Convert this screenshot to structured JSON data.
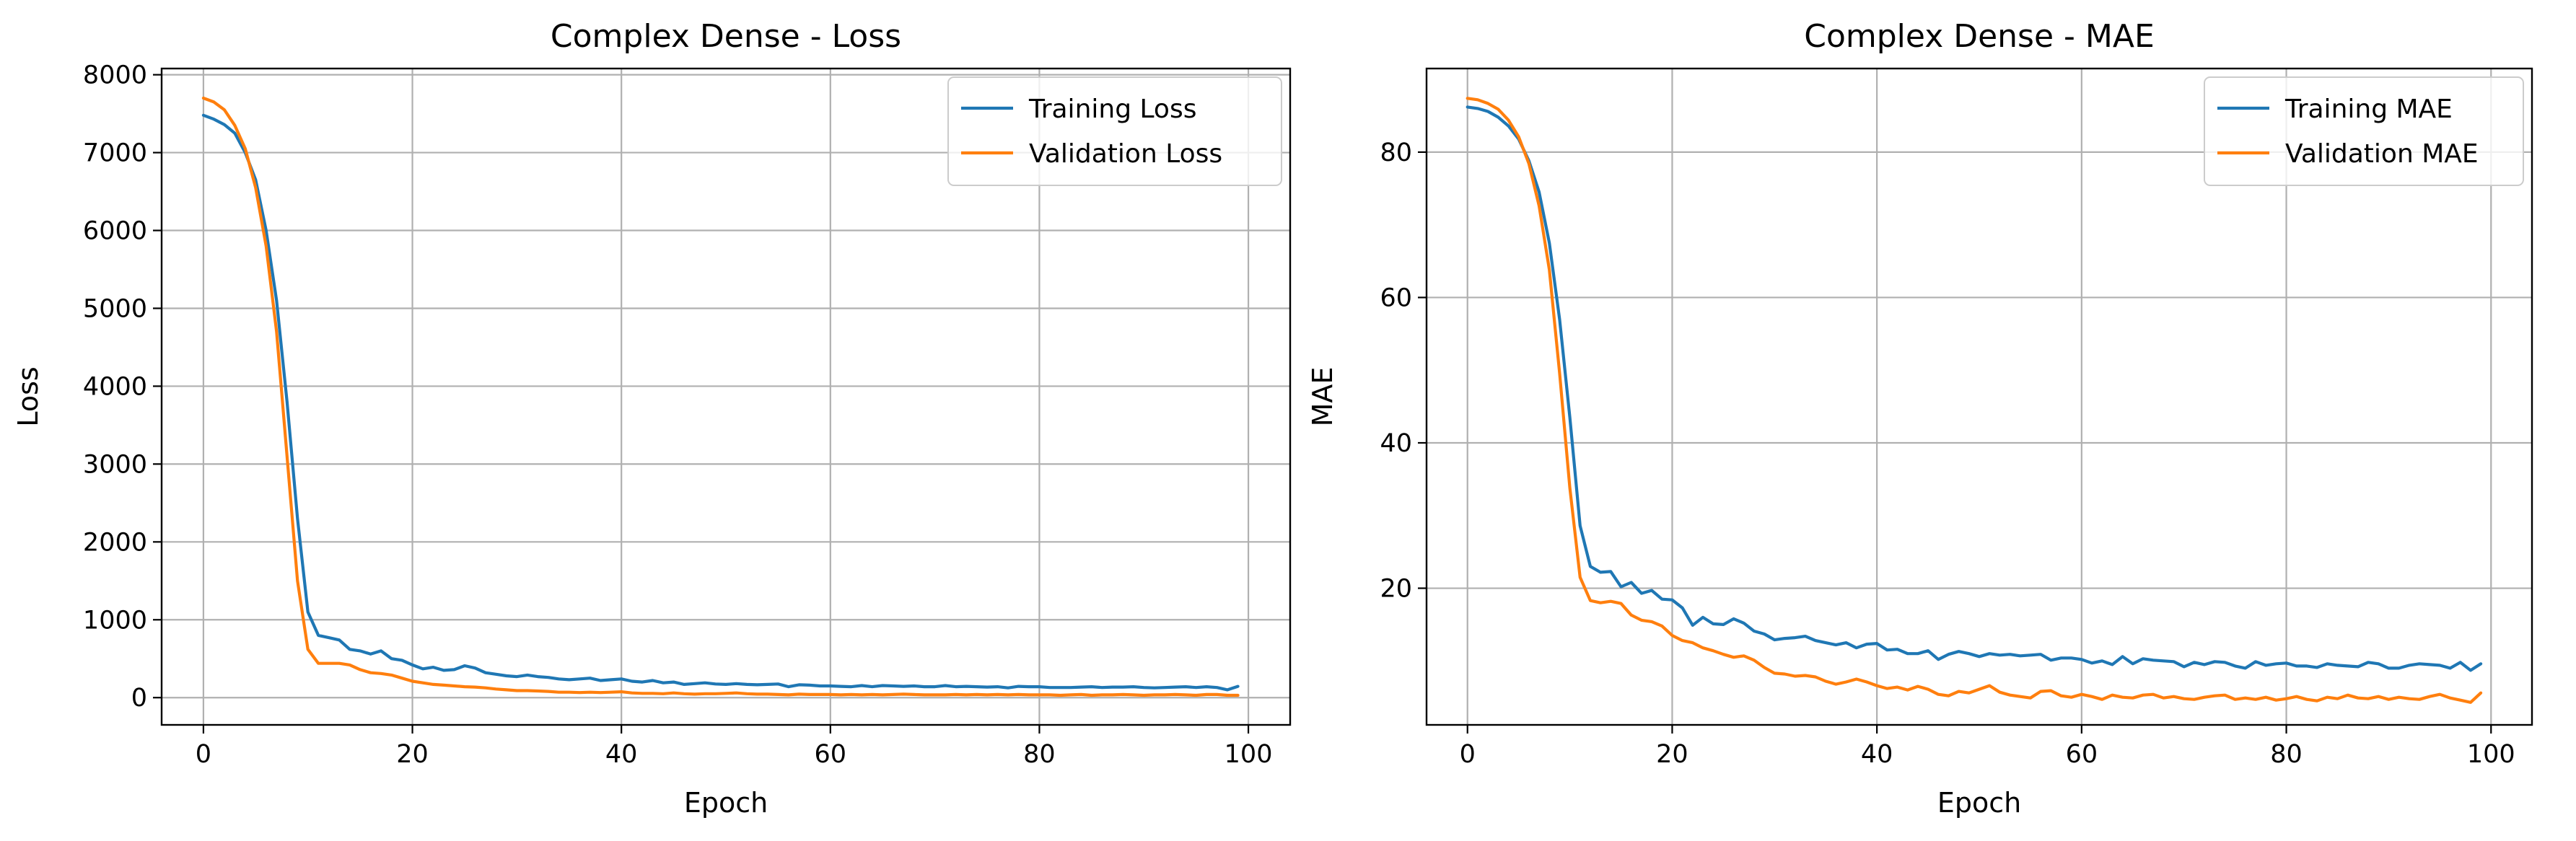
{
  "chart_data": [
    {
      "type": "line",
      "title": "Complex Dense - Loss",
      "xlabel": "Epoch",
      "ylabel": "Loss",
      "xlim": [
        -4,
        104
      ],
      "ylim": [
        -350,
        8080
      ],
      "xticks": [
        0,
        20,
        40,
        60,
        80,
        100
      ],
      "yticks": [
        0,
        1000,
        2000,
        3000,
        4000,
        5000,
        6000,
        7000,
        8000
      ],
      "grid": true,
      "legend_position": "top-right",
      "series": [
        {
          "name": "Training Loss",
          "color": "#1f77b4",
          "x": [
            0,
            1,
            2,
            3,
            4,
            5,
            6,
            7,
            8,
            9,
            10,
            11,
            12,
            13,
            14,
            15,
            16,
            17,
            18,
            19,
            20,
            21,
            22,
            23,
            24,
            25,
            26,
            27,
            28,
            29,
            30,
            31,
            32,
            33,
            34,
            35,
            36,
            37,
            38,
            39,
            40,
            41,
            42,
            43,
            44,
            45,
            46,
            47,
            48,
            49,
            50,
            51,
            52,
            53,
            54,
            55,
            56,
            57,
            58,
            59,
            60,
            61,
            62,
            63,
            64,
            65,
            66,
            67,
            68,
            69,
            70,
            71,
            72,
            73,
            74,
            75,
            76,
            77,
            78,
            79,
            80,
            81,
            82,
            83,
            84,
            85,
            86,
            87,
            88,
            89,
            90,
            91,
            92,
            93,
            94,
            95,
            96,
            97,
            98,
            99
          ],
          "y": [
            7480,
            7430,
            7360,
            7250,
            7000,
            6650,
            6000,
            5100,
            3800,
            2300,
            1100,
            800,
            770,
            740,
            620,
            600,
            560,
            600,
            500,
            480,
            420,
            370,
            390,
            350,
            360,
            410,
            380,
            320,
            300,
            280,
            270,
            290,
            270,
            260,
            240,
            230,
            240,
            250,
            220,
            230,
            240,
            210,
            200,
            220,
            190,
            200,
            170,
            180,
            190,
            175,
            170,
            180,
            170,
            165,
            170,
            175,
            140,
            165,
            160,
            150,
            150,
            145,
            140,
            155,
            140,
            155,
            150,
            145,
            150,
            140,
            140,
            155,
            140,
            145,
            140,
            135,
            140,
            125,
            145,
            140,
            140,
            130,
            130,
            130,
            135,
            140,
            130,
            135,
            135,
            140,
            130,
            125,
            130,
            135,
            140,
            130,
            140,
            130,
            100,
            145
          ]
        },
        {
          "name": "Validation Loss",
          "color": "#ff7f0e",
          "x": [
            0,
            1,
            2,
            3,
            4,
            5,
            6,
            7,
            8,
            9,
            10,
            11,
            12,
            13,
            14,
            15,
            16,
            17,
            18,
            19,
            20,
            21,
            22,
            23,
            24,
            25,
            26,
            27,
            28,
            29,
            30,
            31,
            32,
            33,
            34,
            35,
            36,
            37,
            38,
            39,
            40,
            41,
            42,
            43,
            44,
            45,
            46,
            47,
            48,
            49,
            50,
            51,
            52,
            53,
            54,
            55,
            56,
            57,
            58,
            59,
            60,
            61,
            62,
            63,
            64,
            65,
            66,
            67,
            68,
            69,
            70,
            71,
            72,
            73,
            74,
            75,
            76,
            77,
            78,
            79,
            80,
            81,
            82,
            83,
            84,
            85,
            86,
            87,
            88,
            89,
            90,
            91,
            92,
            93,
            94,
            95,
            96,
            97,
            98,
            99
          ],
          "y": [
            7700,
            7650,
            7550,
            7350,
            7050,
            6550,
            5800,
            4700,
            3100,
            1500,
            620,
            440,
            440,
            440,
            420,
            360,
            320,
            310,
            290,
            250,
            210,
            190,
            170,
            160,
            150,
            140,
            135,
            125,
            110,
            100,
            90,
            90,
            85,
            80,
            70,
            70,
            65,
            70,
            65,
            70,
            75,
            60,
            55,
            55,
            50,
            60,
            50,
            45,
            50,
            50,
            55,
            60,
            50,
            45,
            45,
            40,
            35,
            45,
            40,
            40,
            40,
            35,
            40,
            35,
            40,
            35,
            40,
            45,
            40,
            35,
            35,
            35,
            40,
            35,
            40,
            35,
            40,
            35,
            40,
            35,
            35,
            35,
            30,
            35,
            40,
            30,
            35,
            35,
            40,
            35,
            30,
            35,
            35,
            40,
            35,
            30,
            40,
            40,
            30,
            30
          ]
        }
      ]
    },
    {
      "type": "line",
      "title": "Complex Dense - MAE",
      "xlabel": "Epoch",
      "ylabel": "MAE",
      "xlim": [
        -4,
        104
      ],
      "ylim": [
        1.2,
        91.5
      ],
      "xticks": [
        0,
        20,
        40,
        60,
        80,
        100
      ],
      "yticks": [
        20,
        40,
        60,
        80
      ],
      "grid": true,
      "legend_position": "top-right",
      "series": [
        {
          "name": "Training MAE",
          "color": "#1f77b4",
          "x": [
            0,
            1,
            2,
            3,
            4,
            5,
            6,
            7,
            8,
            9,
            10,
            11,
            12,
            13,
            14,
            15,
            16,
            17,
            18,
            19,
            20,
            21,
            22,
            23,
            24,
            25,
            26,
            27,
            28,
            29,
            30,
            31,
            32,
            33,
            34,
            35,
            36,
            37,
            38,
            39,
            40,
            41,
            42,
            43,
            44,
            45,
            46,
            47,
            48,
            49,
            50,
            51,
            52,
            53,
            54,
            55,
            56,
            57,
            58,
            59,
            60,
            61,
            62,
            63,
            64,
            65,
            66,
            67,
            68,
            69,
            70,
            71,
            72,
            73,
            74,
            75,
            76,
            77,
            78,
            79,
            80,
            81,
            82,
            83,
            84,
            85,
            86,
            87,
            88,
            89,
            90,
            91,
            92,
            93,
            94,
            95,
            96,
            97,
            98,
            99
          ],
          "y": [
            86.2,
            86,
            85.6,
            84.8,
            83.6,
            81.8,
            78.8,
            74.5,
            67.5,
            57,
            43.5,
            28.6,
            23,
            22.2,
            22.3,
            20.2,
            20.8,
            19.3,
            19.7,
            18.5,
            18.4,
            17.3,
            14.9,
            16,
            15.1,
            15,
            15.8,
            15.2,
            14.1,
            13.7,
            12.9,
            13.1,
            13.2,
            13.4,
            12.8,
            12.5,
            12.2,
            12.5,
            11.8,
            12.3,
            12.4,
            11.5,
            11.6,
            11,
            11,
            11.4,
            10.2,
            10.9,
            11.3,
            11,
            10.6,
            11,
            10.8,
            10.9,
            10.7,
            10.8,
            10.9,
            10.1,
            10.4,
            10.4,
            10.2,
            9.7,
            10,
            9.5,
            10.6,
            9.6,
            10.3,
            10.1,
            10,
            9.9,
            9.2,
            9.8,
            9.5,
            9.9,
            9.8,
            9.3,
            9,
            9.9,
            9.4,
            9.6,
            9.7,
            9.3,
            9.3,
            9.1,
            9.6,
            9.4,
            9.3,
            9.2,
            9.8,
            9.6,
            9,
            9,
            9.4,
            9.6,
            9.5,
            9.4,
            9,
            9.8,
            8.7,
            9.6
          ]
        },
        {
          "name": "Validation MAE",
          "color": "#ff7f0e",
          "x": [
            0,
            1,
            2,
            3,
            4,
            5,
            6,
            7,
            8,
            9,
            10,
            11,
            12,
            13,
            14,
            15,
            16,
            17,
            18,
            19,
            20,
            21,
            22,
            23,
            24,
            25,
            26,
            27,
            28,
            29,
            30,
            31,
            32,
            33,
            34,
            35,
            36,
            37,
            38,
            39,
            40,
            41,
            42,
            43,
            44,
            45,
            46,
            47,
            48,
            49,
            50,
            51,
            52,
            53,
            54,
            55,
            56,
            57,
            58,
            59,
            60,
            61,
            62,
            63,
            64,
            65,
            66,
            67,
            68,
            69,
            70,
            71,
            72,
            73,
            74,
            75,
            76,
            77,
            78,
            79,
            80,
            81,
            82,
            83,
            84,
            85,
            86,
            87,
            88,
            89,
            90,
            91,
            92,
            93,
            94,
            95,
            96,
            97,
            98,
            99
          ],
          "y": [
            87.4,
            87.2,
            86.7,
            85.9,
            84.4,
            82.1,
            78.4,
            72.6,
            63.8,
            49.6,
            33.8,
            21.5,
            18.3,
            18,
            18.2,
            17.9,
            16.3,
            15.6,
            15.4,
            14.8,
            13.5,
            12.8,
            12.5,
            11.8,
            11.4,
            10.9,
            10.5,
            10.7,
            10.1,
            9.1,
            8.3,
            8.2,
            7.9,
            8,
            7.8,
            7.2,
            6.8,
            7.1,
            7.5,
            7.1,
            6.6,
            6.2,
            6.4,
            6,
            6.5,
            6.1,
            5.4,
            5.2,
            5.8,
            5.6,
            6.1,
            6.6,
            5.7,
            5.3,
            5.1,
            4.9,
            5.8,
            5.9,
            5.2,
            5,
            5.4,
            5.1,
            4.7,
            5.3,
            5,
            4.9,
            5.3,
            5.4,
            4.9,
            5.1,
            4.8,
            4.7,
            5,
            5.2,
            5.3,
            4.7,
            4.9,
            4.7,
            5,
            4.6,
            4.8,
            5.1,
            4.7,
            4.5,
            5,
            4.8,
            5.3,
            4.9,
            4.8,
            5.1,
            4.7,
            5,
            4.8,
            4.7,
            5.1,
            5.4,
            4.9,
            4.6,
            4.3,
            5.6
          ]
        }
      ]
    }
  ]
}
